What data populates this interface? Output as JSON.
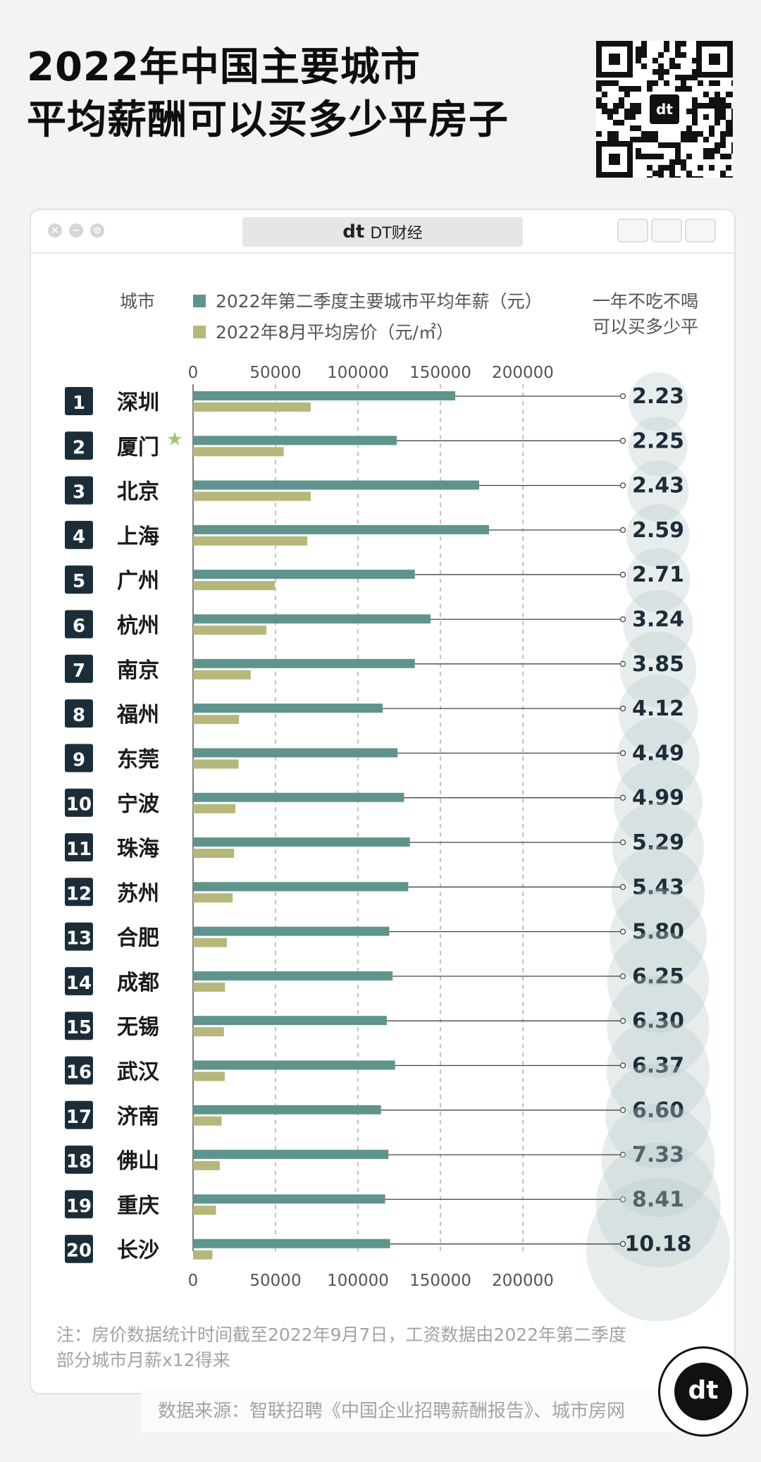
{
  "title": {
    "line1": "2022年中国主要城市",
    "line2": "平均薪酬可以买多少平房子"
  },
  "window": {
    "url_label": "DT财经",
    "logo_text": "dt"
  },
  "legend": {
    "city_label": "城市",
    "salary_label": "2022年第二季度主要城市平均年薪（元）",
    "price_label": "2022年8月平均房价（元/㎡）",
    "area_label_line1": "一年不吃不喝",
    "area_label_line2": "可以买多少平"
  },
  "colors": {
    "salary": "#5e948c",
    "price": "#b5b87a",
    "rank_bg": "#1c2d3a",
    "bubble": "#b9cbcb",
    "star": "#9dc873"
  },
  "chart_data": {
    "type": "bar",
    "title": "2022年中国主要城市平均薪酬可以买多少平房子",
    "xlim": [
      0,
      230000
    ],
    "xticks": [
      "0",
      "50000",
      "100000",
      "150000",
      "200000"
    ],
    "categories": [
      "深圳",
      "厦门",
      "北京",
      "上海",
      "广州",
      "杭州",
      "南京",
      "福州",
      "东莞",
      "宁波",
      "珠海",
      "苏州",
      "合肥",
      "成都",
      "无锡",
      "武汉",
      "济南",
      "佛山",
      "重庆",
      "长沙"
    ],
    "ranks": [
      "1",
      "2",
      "3",
      "4",
      "5",
      "6",
      "7",
      "8",
      "9",
      "10",
      "11",
      "12",
      "13",
      "14",
      "15",
      "16",
      "17",
      "18",
      "19",
      "20"
    ],
    "series": [
      {
        "name": "2022年第二季度主要城市平均年薪（元）",
        "values": [
          159000,
          123500,
          173500,
          179500,
          134500,
          144000,
          134500,
          115000,
          124000,
          128000,
          131500,
          130500,
          119000,
          121000,
          117500,
          122500,
          114000,
          118500,
          116500,
          119500
        ]
      },
      {
        "name": "2022年8月平均房价（元/㎡）",
        "values": [
          71300,
          55000,
          71400,
          69300,
          49600,
          44500,
          34900,
          27900,
          27600,
          25700,
          24900,
          24000,
          20500,
          19400,
          18700,
          19200,
          17300,
          16200,
          13900,
          11700
        ]
      }
    ],
    "area_per_year": [
      "2.23",
      "2.25",
      "2.43",
      "2.59",
      "2.71",
      "3.24",
      "3.85",
      "4.12",
      "4.49",
      "4.99",
      "5.29",
      "5.43",
      "5.80",
      "6.25",
      "6.30",
      "6.37",
      "6.60",
      "7.33",
      "8.41",
      "10.18"
    ],
    "highlight_index": 1
  },
  "footnote": {
    "line1": "注：房价数据统计时间截至2022年9月7日，工资数据由2022年第二季度",
    "line2": "部分城市月薪x12得来"
  },
  "source": "数据来源：智联招聘《中国企业招聘薪酬报告》、城市房网",
  "badge_text": "dt"
}
